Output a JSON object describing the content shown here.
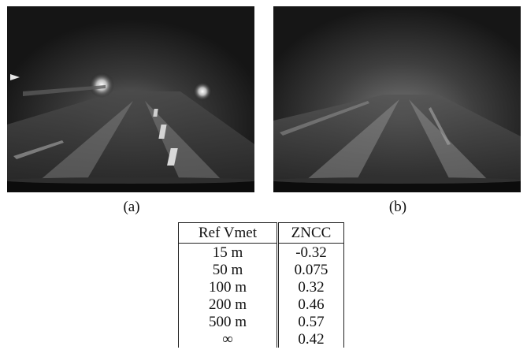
{
  "figure": {
    "panels": [
      {
        "caption": "(a)",
        "image_description": "foggy-night-road-with-headlights"
      },
      {
        "caption": "(b)",
        "image_description": "simulated-fog-road-view"
      }
    ]
  },
  "table": {
    "headers": [
      "Ref Vmet",
      "ZNCC"
    ],
    "rows": [
      [
        "15 m",
        "-0.32"
      ],
      [
        "50 m",
        "0.075"
      ],
      [
        "100 m",
        "0.32"
      ],
      [
        "200 m",
        "0.46"
      ],
      [
        "500 m",
        "0.57"
      ],
      [
        "∞",
        "0.42"
      ]
    ]
  }
}
